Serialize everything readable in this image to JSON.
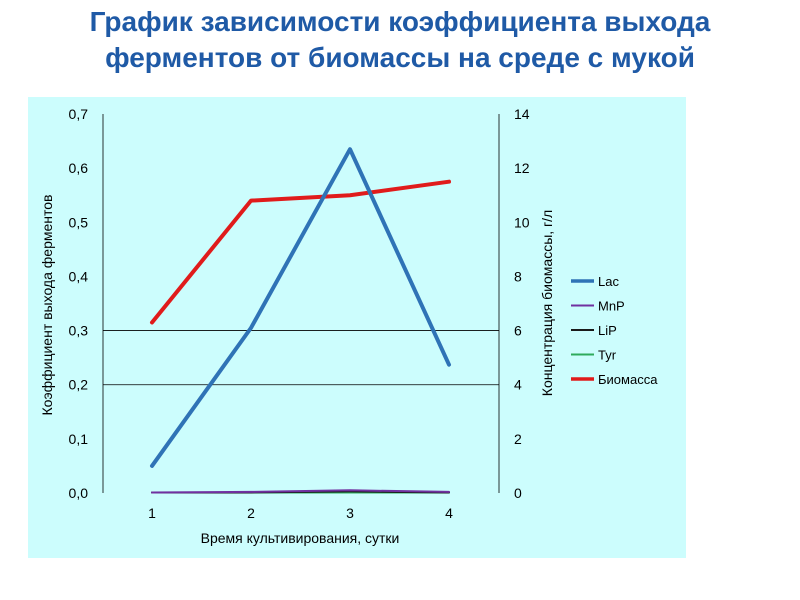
{
  "slide": {
    "title_line1": "График зависимости коэффициента выхода",
    "title_line2": "ферментов от биомассы на среде с мукой"
  },
  "chart_data": {
    "type": "line",
    "title": "",
    "xlabel": "Время культивирования, сутки",
    "ylabel_left": "Коэффициент выхода ферментов",
    "ylabel_right": "Концентрация биомассы, г/л",
    "categories": [
      "1",
      "2",
      "3",
      "4"
    ],
    "y_left": {
      "range": [
        0,
        0.7
      ],
      "ticks": [
        0,
        0.1,
        0.2,
        0.3,
        0.4,
        0.5,
        0.6,
        0.7
      ],
      "tick_labels": [
        "0,0",
        "0,1",
        "0,2",
        "0,3",
        "0,4",
        "0,5",
        "0,6",
        "0,7"
      ]
    },
    "y_right": {
      "range": [
        0,
        14
      ],
      "ticks": [
        0,
        2,
        4,
        6,
        8,
        10,
        12,
        14
      ],
      "tick_labels": [
        "0",
        "2",
        "4",
        "6",
        "8",
        "10",
        "12",
        "14"
      ]
    },
    "gridlines": [
      0.2,
      0.3
    ],
    "legend_position": "right",
    "series": [
      {
        "name": "Lac",
        "axis": "left",
        "color": "#2f73b6",
        "values": [
          0.05,
          0.305,
          0.635,
          0.237
        ]
      },
      {
        "name": "MnP",
        "axis": "left",
        "color": "#7030a0",
        "values": [
          0.001,
          0.002,
          0.005,
          0.002
        ]
      },
      {
        "name": "LiP",
        "axis": "left",
        "color": "#1a1a1a",
        "values": [
          0.001,
          0.001,
          0.003,
          0.001
        ]
      },
      {
        "name": "Tyr",
        "axis": "left",
        "color": "#2eaa5c",
        "values": [
          0.001,
          0.001,
          0.001,
          0.001
        ]
      },
      {
        "name": "Биомасса",
        "axis": "right",
        "color": "#e01b1b",
        "values": [
          6.3,
          10.8,
          11.0,
          11.5
        ]
      }
    ]
  }
}
